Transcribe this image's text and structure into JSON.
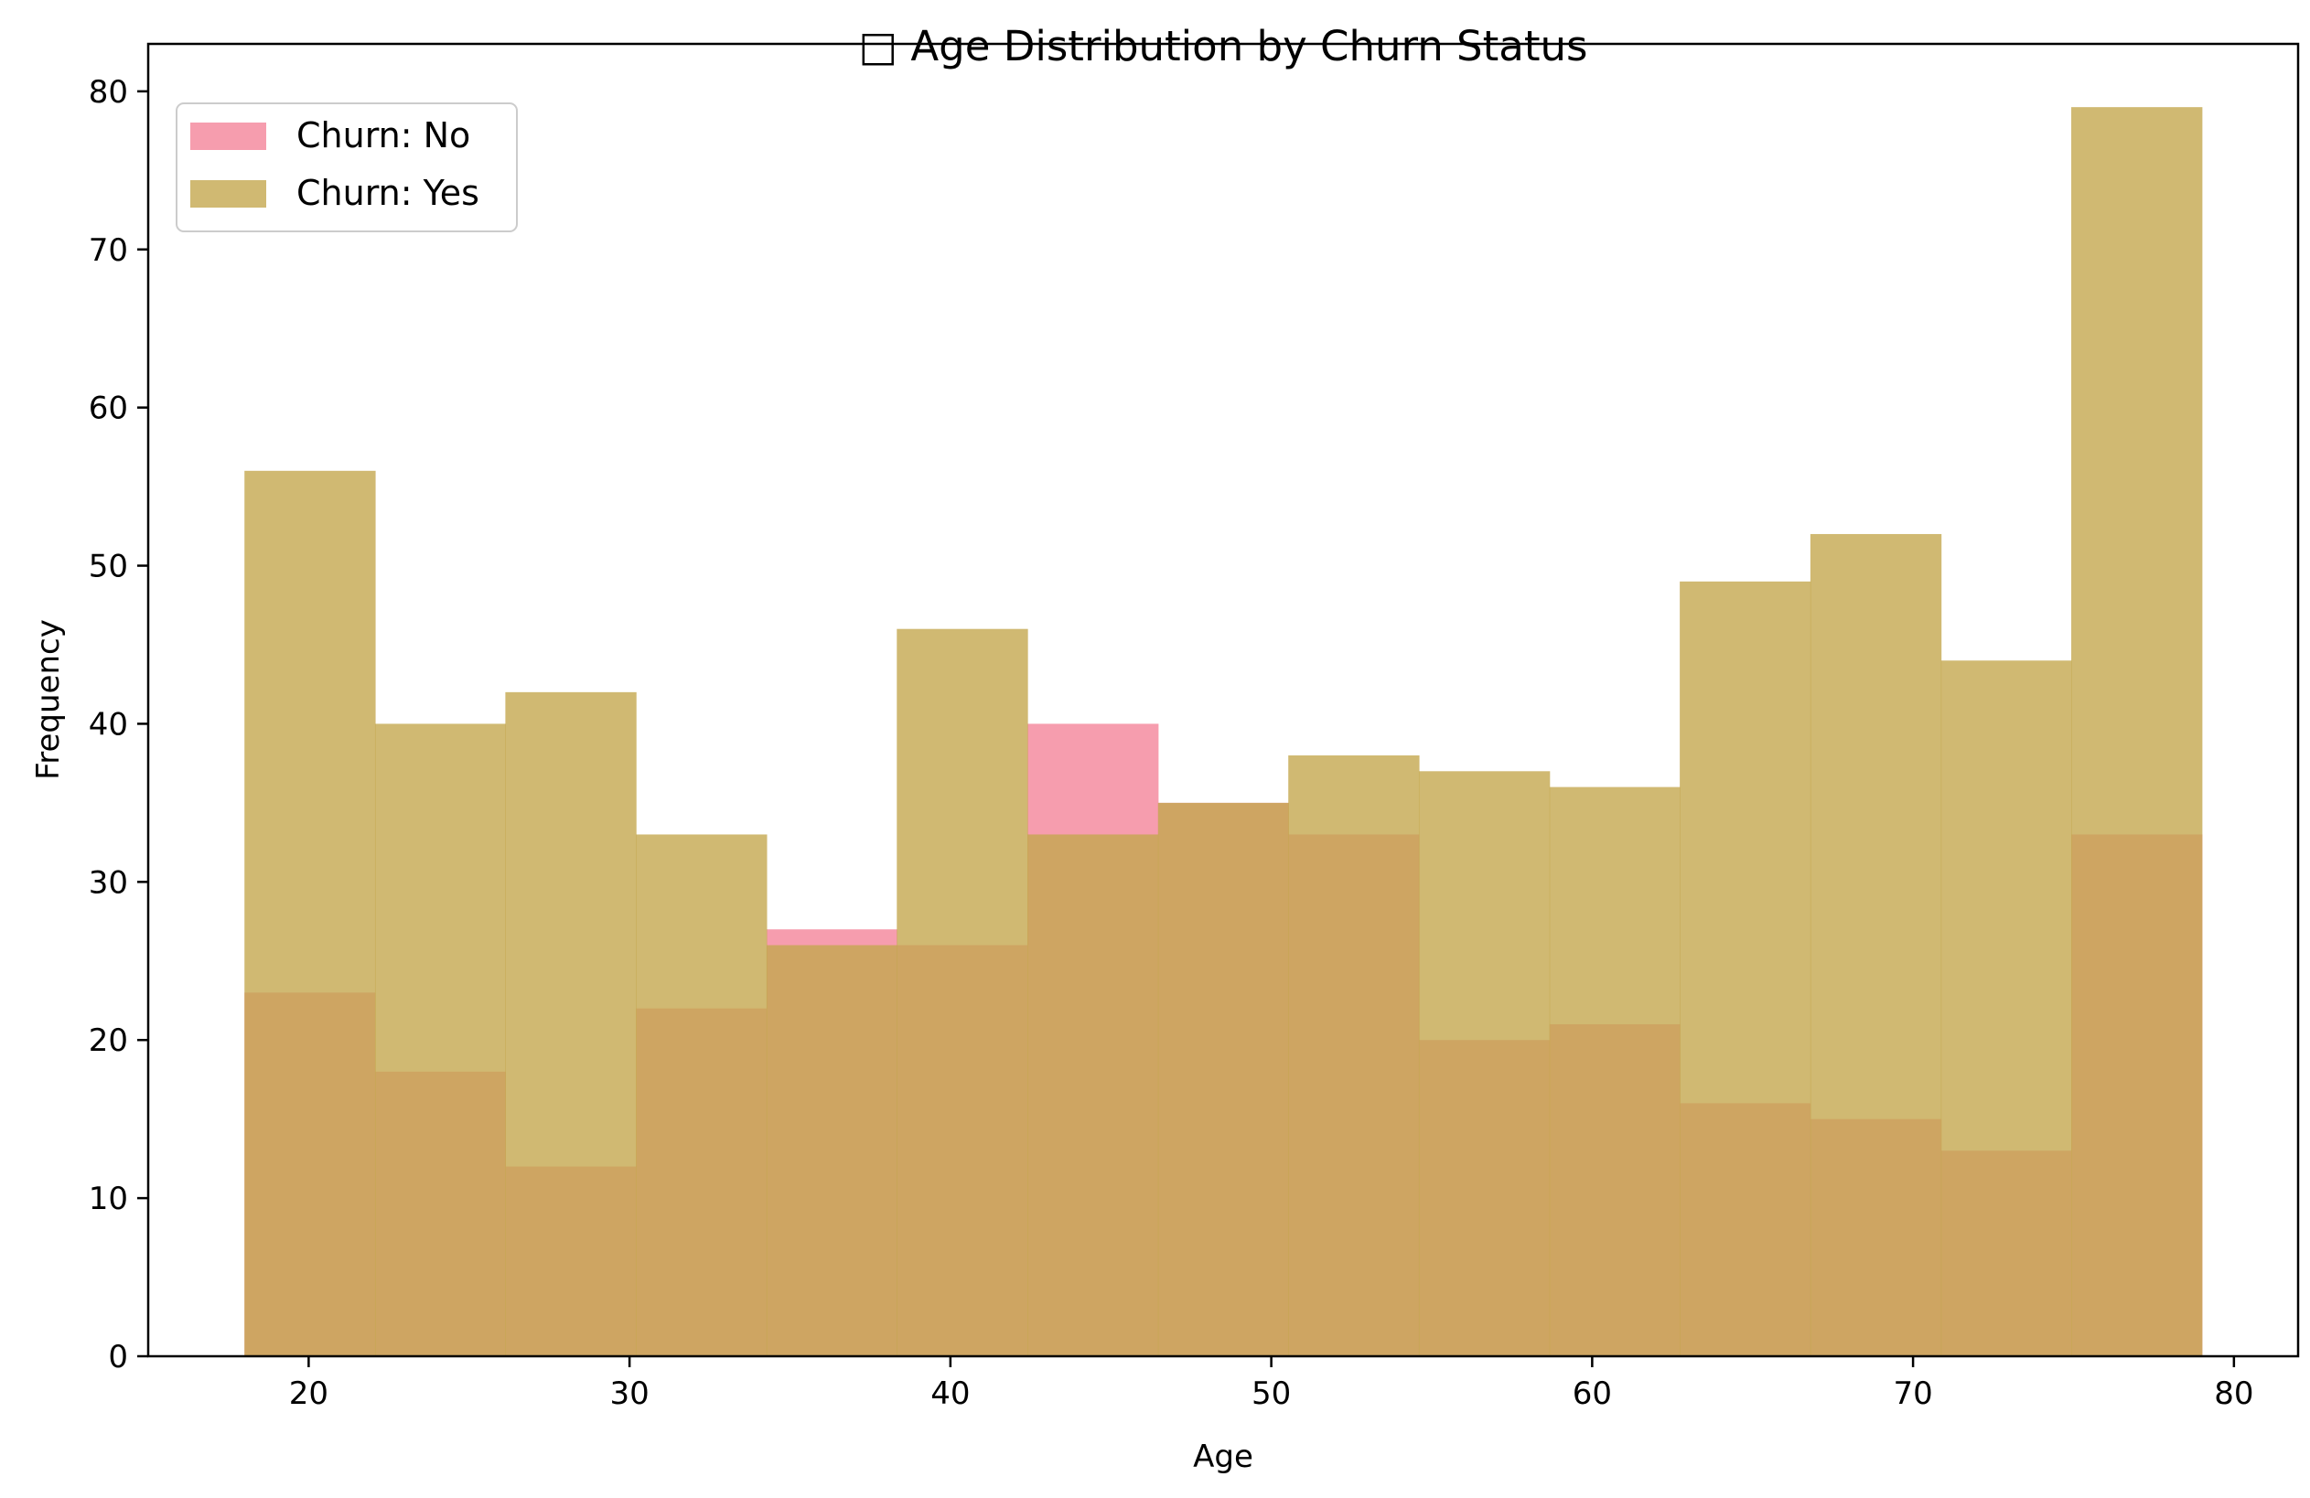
{
  "chart_data": {
    "type": "histogram",
    "title": "□ Age Distribution by Churn Status",
    "xlabel": "Age",
    "ylabel": "Frequency",
    "xlim": [
      15,
      82
    ],
    "ylim": [
      0,
      83
    ],
    "xticks": [
      "20",
      "30",
      "40",
      "50",
      "60",
      "70",
      "80"
    ],
    "yticks": [
      "0",
      "10",
      "20",
      "30",
      "40",
      "50",
      "60",
      "70",
      "80"
    ],
    "bin_edges": [
      18,
      22.07,
      26.13,
      30.2,
      34.27,
      38.33,
      42.4,
      46.47,
      50.53,
      54.6,
      58.67,
      62.73,
      66.8,
      70.87,
      74.93,
      79
    ],
    "legend_position": "upper-left",
    "series": [
      {
        "name": "Churn: No",
        "color": "#f48ca0",
        "opacity": 0.85,
        "values": [
          23,
          18,
          12,
          22,
          27,
          26,
          40,
          35,
          33,
          20,
          21,
          16,
          15,
          13,
          33
        ]
      },
      {
        "name": "Churn: Yes",
        "color": "#c4a74f",
        "opacity": 0.8,
        "values": [
          56,
          40,
          42,
          33,
          26,
          46,
          33,
          35,
          38,
          37,
          36,
          49,
          52,
          44,
          79
        ]
      }
    ]
  }
}
